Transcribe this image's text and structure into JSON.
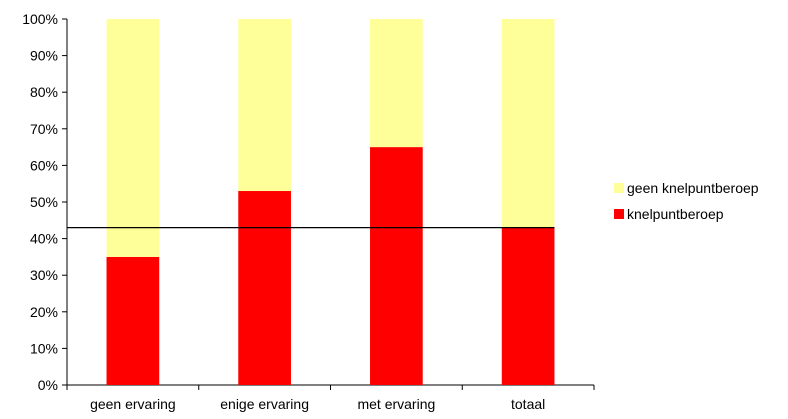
{
  "chart_data": {
    "type": "bar",
    "stacked": true,
    "percent_stacked": true,
    "categories": [
      "geen ervaring",
      "enige ervaring",
      "met ervaring",
      "totaal"
    ],
    "series": [
      {
        "name": "knelpuntberoep",
        "values": [
          35,
          53,
          65,
          43
        ],
        "color": "#ff0000"
      },
      {
        "name": "geen knelpuntberoep",
        "values": [
          65,
          47,
          35,
          57
        ],
        "color": "#ffff99"
      }
    ],
    "y_ticks": [
      "0%",
      "10%",
      "20%",
      "30%",
      "40%",
      "50%",
      "60%",
      "70%",
      "80%",
      "90%",
      "100%"
    ],
    "ylim": [
      0,
      100
    ],
    "reference_line": {
      "value": 43
    },
    "legend": {
      "placement": "right",
      "entries": [
        "geen knelpuntberoep",
        "knelpuntberoep"
      ]
    },
    "grid": false
  }
}
